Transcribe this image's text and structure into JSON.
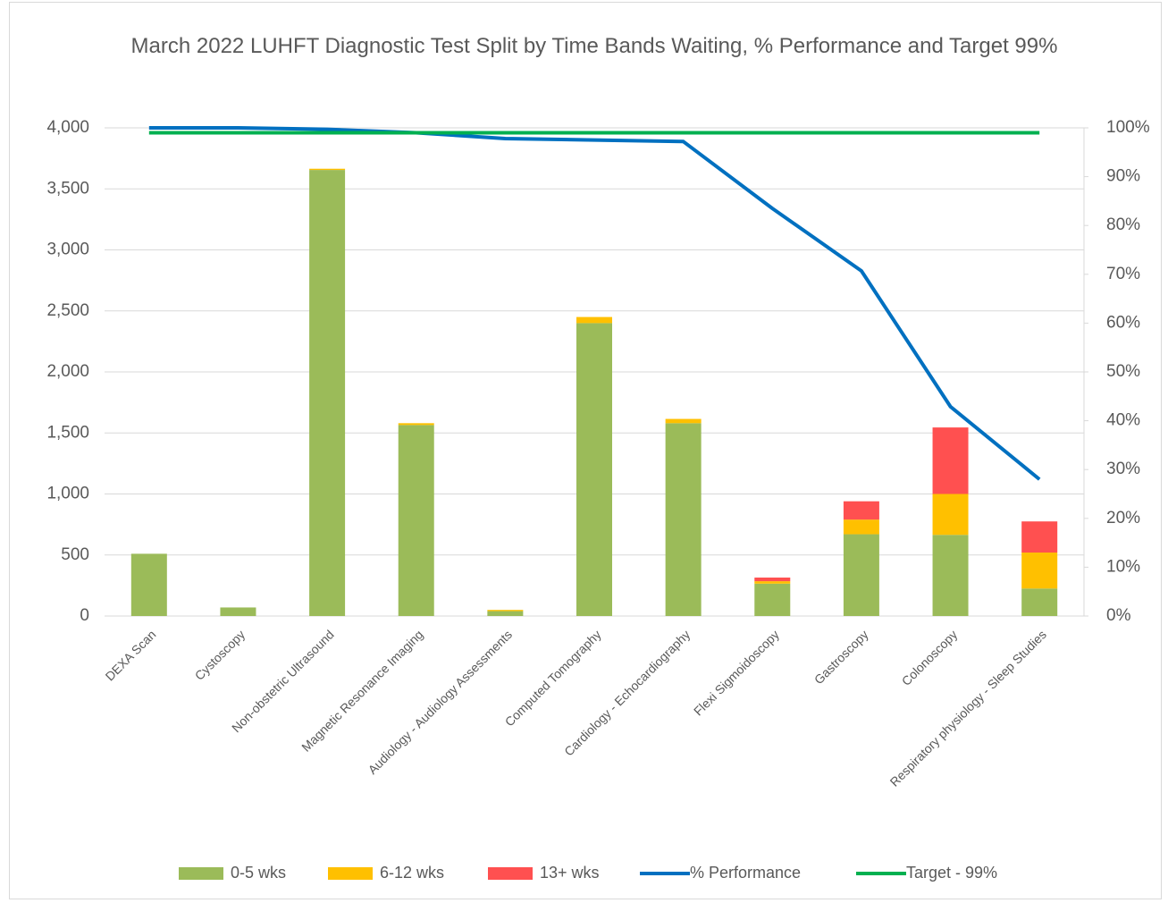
{
  "chart_data": {
    "type": "bar",
    "stacked": true,
    "title": "March 2022 LUHFT Diagnostic Test Split by Time Bands Waiting, % Performance and Target 99%",
    "categories": [
      "DEXA Scan",
      "Cystoscopy",
      "Non-obstetric Ultrasound",
      "Magnetic Resonance Imaging",
      "Audiology - Audiology Assessments",
      "Computed Tomography",
      "Cardiology - Echocardiography",
      "Flexi Sigmoidoscopy",
      "Gastroscopy",
      "Colonoscopy",
      "Respiratory physiology - Sleep Studies"
    ],
    "series": [
      {
        "name": "0-5 wks",
        "type": "bar",
        "color": "#9bbb59",
        "values": [
          510,
          70,
          3655,
          1565,
          40,
          2400,
          1580,
          265,
          670,
          665,
          225
        ]
      },
      {
        "name": "6-12 wks",
        "type": "bar",
        "color": "#ffc000",
        "values": [
          0,
          0,
          10,
          15,
          10,
          50,
          35,
          20,
          120,
          335,
          295
        ]
      },
      {
        "name": "13+ wks",
        "type": "bar",
        "color": "#ff5050",
        "values": [
          0,
          0,
          0,
          0,
          0,
          0,
          0,
          30,
          150,
          545,
          255
        ]
      },
      {
        "name": "% Performance",
        "type": "line",
        "axis": "y2",
        "color": "#0070c0",
        "values": [
          100,
          100,
          99.7,
          99,
          97.8,
          97.5,
          97.2,
          83.5,
          70.7,
          42.9,
          28
        ]
      },
      {
        "name": "Target - 99%",
        "type": "line",
        "axis": "y2",
        "color": "#00b050",
        "values": [
          99,
          99,
          99,
          99,
          99,
          99,
          99,
          99,
          99,
          99,
          99
        ]
      }
    ],
    "ylim": [
      0,
      4000
    ],
    "yticks": [
      0,
      500,
      {
        "value": 1000,
        "label": "1,000"
      },
      {
        "value": 1500,
        "label": "1,500"
      },
      {
        "value": 2000,
        "label": "2,000"
      },
      {
        "value": 2500,
        "label": "2,500"
      },
      {
        "value": 3000,
        "label": "3,000"
      },
      {
        "value": 3500,
        "label": "3,500"
      },
      {
        "value": 4000,
        "label": "4,000"
      }
    ],
    "y2lim": [
      0,
      100
    ],
    "y2ticks": [
      {
        "value": 0,
        "label": "0%"
      },
      {
        "value": 10,
        "label": "10%"
      },
      {
        "value": 20,
        "label": "20%"
      },
      {
        "value": 30,
        "label": "30%"
      },
      {
        "value": 40,
        "label": "40%"
      },
      {
        "value": 50,
        "label": "50%"
      },
      {
        "value": 60,
        "label": "60%"
      },
      {
        "value": 70,
        "label": "70%"
      },
      {
        "value": 80,
        "label": "80%"
      },
      {
        "value": 90,
        "label": "90%"
      },
      {
        "value": 100,
        "label": "100%"
      }
    ],
    "grid": true,
    "legend": "bottom"
  }
}
